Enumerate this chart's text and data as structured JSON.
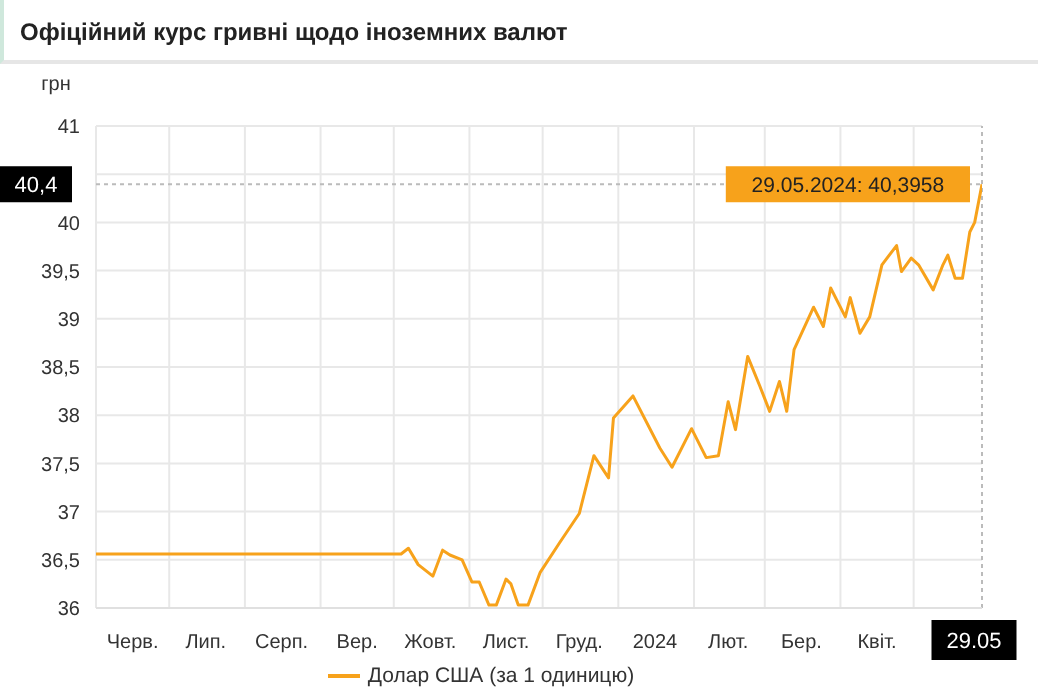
{
  "chart_data": {
    "type": "line",
    "title": "Офіційний курс гривні щодо іноземних валют",
    "ylabel": "грн",
    "x": [
      "2023-06-01",
      "2023-10-04",
      "2023-10-07",
      "2023-10-11",
      "2023-10-17",
      "2023-10-21",
      "2023-10-24",
      "2023-10-29",
      "2023-11-02",
      "2023-11-05",
      "2023-11-09",
      "2023-11-12",
      "2023-11-16",
      "2023-11-18",
      "2023-11-21",
      "2023-11-25",
      "2023-11-30",
      "2023-12-08",
      "2023-12-16",
      "2023-12-22",
      "2023-12-28",
      "2023-12-30",
      "2024-01-07",
      "2024-01-18",
      "2024-01-23",
      "2024-01-31",
      "2024-02-06",
      "2024-02-11",
      "2024-02-15",
      "2024-02-18",
      "2024-02-23",
      "2024-02-28",
      "2024-03-03",
      "2024-03-07",
      "2024-03-10",
      "2024-03-13",
      "2024-03-21",
      "2024-03-25",
      "2024-03-28",
      "2024-04-03",
      "2024-04-05",
      "2024-04-09",
      "2024-04-13",
      "2024-04-18",
      "2024-04-24",
      "2024-04-26",
      "2024-04-30",
      "2024-05-03",
      "2024-05-09",
      "2024-05-13",
      "2024-05-15",
      "2024-05-18",
      "2024-05-21",
      "2024-05-24",
      "2024-05-26",
      "2024-05-29"
    ],
    "series": [
      {
        "name": "Долар США (за 1 одиницю)",
        "color": "#f7a21b",
        "values": [
          36.56,
          36.56,
          36.62,
          36.45,
          36.33,
          36.6,
          36.55,
          36.5,
          36.27,
          36.27,
          36.03,
          36.03,
          36.3,
          36.25,
          36.03,
          36.03,
          36.37,
          36.68,
          36.98,
          37.58,
          37.35,
          37.97,
          38.2,
          37.66,
          37.46,
          37.86,
          37.56,
          37.58,
          38.14,
          37.85,
          38.61,
          38.3,
          38.04,
          38.35,
          38.04,
          38.68,
          39.12,
          38.92,
          39.32,
          39.02,
          39.22,
          38.85,
          39.02,
          39.56,
          39.76,
          39.49,
          39.63,
          39.56,
          39.3,
          39.56,
          39.66,
          39.42,
          39.42,
          39.9,
          40.0,
          40.3958
        ]
      }
    ],
    "xlim": [
      "2023-06-01",
      "2024-05-29"
    ],
    "xticks": [
      {
        "value": "2023-06-01",
        "label": null
      },
      {
        "value": "2023-06-16",
        "label": "Черв."
      },
      {
        "value": "2023-07-01",
        "label": null
      },
      {
        "value": "2023-07-16",
        "label": "Лип."
      },
      {
        "value": "2023-08-01",
        "label": null
      },
      {
        "value": "2023-08-16",
        "label": "Серп."
      },
      {
        "value": "2023-09-01",
        "label": null
      },
      {
        "value": "2023-09-16",
        "label": "Вер."
      },
      {
        "value": "2023-10-01",
        "label": null
      },
      {
        "value": "2023-10-16",
        "label": "Жовт."
      },
      {
        "value": "2023-11-01",
        "label": null
      },
      {
        "value": "2023-11-16",
        "label": "Лист."
      },
      {
        "value": "2023-12-01",
        "label": null
      },
      {
        "value": "2023-12-16",
        "label": "Груд."
      },
      {
        "value": "2024-01-01",
        "label": null
      },
      {
        "value": "2024-01-16",
        "label": "2024"
      },
      {
        "value": "2024-02-01",
        "label": null
      },
      {
        "value": "2024-02-15",
        "label": "Лют."
      },
      {
        "value": "2024-03-01",
        "label": null
      },
      {
        "value": "2024-03-16",
        "label": "Бер."
      },
      {
        "value": "2024-04-01",
        "label": null
      },
      {
        "value": "2024-04-16",
        "label": "Квіт."
      },
      {
        "value": "2024-05-01",
        "label": null
      },
      {
        "value": "2024-05-29",
        "label": "29.05"
      }
    ],
    "ylim": [
      36,
      41
    ],
    "yticks": [
      36,
      {
        "value": 36.5,
        "label": "36,5"
      },
      37,
      {
        "value": 37.5,
        "label": "37,5"
      },
      38,
      {
        "value": 38.5,
        "label": "38,5"
      },
      39,
      {
        "value": 39.5,
        "label": "39,5"
      },
      40,
      {
        "value": 40.5,
        "label": null
      },
      41
    ],
    "ref_lines": [
      {
        "axis": "y",
        "value": 40.3958,
        "label": "40,4",
        "line_style": "dotted",
        "color": "#bbbbbb"
      },
      {
        "axis": "x",
        "value": "2024-05-29",
        "line_style": "dotted",
        "color": "#bbbbbb"
      }
    ],
    "annotations": [
      {
        "text": "29.05.2024: 40,3958",
        "x": "2024-05-29",
        "y": 40.3958
      }
    ],
    "grid": true,
    "legend": "bottom",
    "marker": "none",
    "line_style": "solid"
  }
}
